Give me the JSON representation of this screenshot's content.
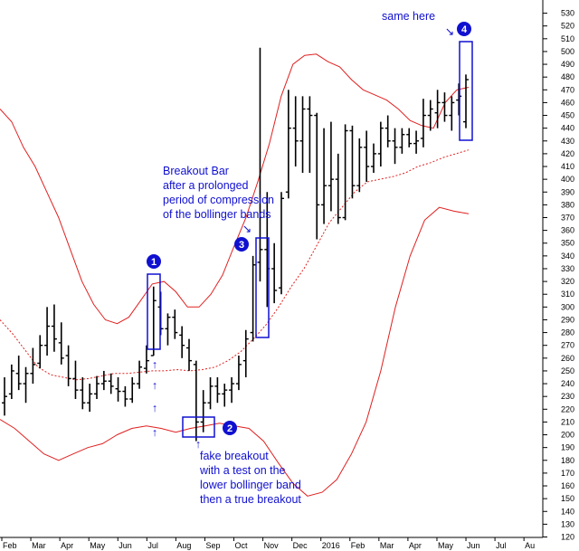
{
  "chart_data": {
    "type": "ohlc",
    "title": "",
    "xlabel": "",
    "ylabel": "",
    "ylim": [
      120,
      530
    ],
    "y_ticks": [
      120,
      130,
      140,
      150,
      160,
      170,
      180,
      190,
      200,
      210,
      220,
      230,
      240,
      250,
      260,
      270,
      280,
      290,
      300,
      310,
      320,
      330,
      340,
      350,
      360,
      370,
      380,
      390,
      400,
      410,
      420,
      430,
      440,
      450,
      460,
      470,
      480,
      490,
      500,
      510,
      520,
      530
    ],
    "x_labels": [
      "Feb",
      "Mar",
      "Apr",
      "May",
      "Jun",
      "Jul",
      "Aug",
      "Sep",
      "Oct",
      "Nov",
      "Dec",
      "2016",
      "Feb",
      "Mar",
      "Apr",
      "May",
      "Jun",
      "Jul",
      "Au"
    ],
    "grid": false,
    "colors": {
      "bars": "#000000",
      "bands": "#e02020",
      "annotation": "#1010d0"
    },
    "bars": [
      {
        "o": 225,
        "h": 245,
        "l": 215,
        "c": 230
      },
      {
        "o": 232,
        "h": 255,
        "l": 228,
        "c": 250
      },
      {
        "o": 248,
        "h": 262,
        "l": 235,
        "c": 240
      },
      {
        "o": 240,
        "h": 253,
        "l": 225,
        "c": 248
      },
      {
        "o": 248,
        "h": 268,
        "l": 240,
        "c": 255
      },
      {
        "o": 256,
        "h": 278,
        "l": 252,
        "c": 270
      },
      {
        "o": 270,
        "h": 300,
        "l": 262,
        "c": 285
      },
      {
        "o": 285,
        "h": 302,
        "l": 265,
        "c": 275
      },
      {
        "o": 272,
        "h": 288,
        "l": 255,
        "c": 260
      },
      {
        "o": 262,
        "h": 270,
        "l": 238,
        "c": 244
      },
      {
        "o": 244,
        "h": 258,
        "l": 228,
        "c": 235
      },
      {
        "o": 235,
        "h": 245,
        "l": 220,
        "c": 225
      },
      {
        "o": 225,
        "h": 240,
        "l": 218,
        "c": 232
      },
      {
        "o": 232,
        "h": 246,
        "l": 228,
        "c": 240
      },
      {
        "o": 240,
        "h": 250,
        "l": 235,
        "c": 242
      },
      {
        "o": 242,
        "h": 248,
        "l": 232,
        "c": 238
      },
      {
        "o": 236,
        "h": 245,
        "l": 226,
        "c": 234
      },
      {
        "o": 234,
        "h": 238,
        "l": 222,
        "c": 228
      },
      {
        "o": 228,
        "h": 245,
        "l": 225,
        "c": 240
      },
      {
        "o": 240,
        "h": 258,
        "l": 236,
        "c": 253
      },
      {
        "o": 252,
        "h": 270,
        "l": 248,
        "c": 258
      },
      {
        "o": 262,
        "h": 316,
        "l": 262,
        "c": 305
      },
      {
        "o": 300,
        "h": 312,
        "l": 278,
        "c": 283
      },
      {
        "o": 283,
        "h": 295,
        "l": 270,
        "c": 292
      },
      {
        "o": 292,
        "h": 298,
        "l": 275,
        "c": 280
      },
      {
        "o": 278,
        "h": 285,
        "l": 260,
        "c": 270
      },
      {
        "o": 268,
        "h": 275,
        "l": 250,
        "c": 258
      },
      {
        "o": 255,
        "h": 258,
        "l": 195,
        "c": 210
      },
      {
        "o": 210,
        "h": 235,
        "l": 202,
        "c": 225
      },
      {
        "o": 225,
        "h": 245,
        "l": 220,
        "c": 238
      },
      {
        "o": 238,
        "h": 245,
        "l": 225,
        "c": 232
      },
      {
        "o": 232,
        "h": 240,
        "l": 222,
        "c": 235
      },
      {
        "o": 235,
        "h": 245,
        "l": 225,
        "c": 240
      },
      {
        "o": 240,
        "h": 262,
        "l": 235,
        "c": 255
      },
      {
        "o": 258,
        "h": 282,
        "l": 245,
        "c": 275
      },
      {
        "o": 280,
        "h": 340,
        "l": 273,
        "c": 333
      },
      {
        "o": 335,
        "h": 503,
        "l": 320,
        "c": 345
      },
      {
        "o": 345,
        "h": 390,
        "l": 300,
        "c": 330
      },
      {
        "o": 330,
        "h": 350,
        "l": 303,
        "c": 313
      },
      {
        "o": 315,
        "h": 390,
        "l": 310,
        "c": 385
      },
      {
        "o": 390,
        "h": 470,
        "l": 385,
        "c": 440
      },
      {
        "o": 440,
        "h": 465,
        "l": 410,
        "c": 430
      },
      {
        "o": 430,
        "h": 465,
        "l": 405,
        "c": 455
      },
      {
        "o": 455,
        "h": 465,
        "l": 405,
        "c": 450
      },
      {
        "o": 450,
        "h": 452,
        "l": 353,
        "c": 380
      },
      {
        "o": 380,
        "h": 440,
        "l": 365,
        "c": 395
      },
      {
        "o": 395,
        "h": 445,
        "l": 375,
        "c": 400
      },
      {
        "o": 400,
        "h": 420,
        "l": 365,
        "c": 370
      },
      {
        "o": 370,
        "h": 443,
        "l": 368,
        "c": 438
      },
      {
        "o": 438,
        "h": 442,
        "l": 385,
        "c": 395
      },
      {
        "o": 395,
        "h": 432,
        "l": 390,
        "c": 425
      },
      {
        "o": 425,
        "h": 438,
        "l": 398,
        "c": 410
      },
      {
        "o": 410,
        "h": 428,
        "l": 405,
        "c": 420
      },
      {
        "o": 420,
        "h": 445,
        "l": 410,
        "c": 440
      },
      {
        "o": 440,
        "h": 450,
        "l": 425,
        "c": 430
      },
      {
        "o": 430,
        "h": 440,
        "l": 412,
        "c": 425
      },
      {
        "o": 425,
        "h": 440,
        "l": 420,
        "c": 435
      },
      {
        "o": 435,
        "h": 440,
        "l": 425,
        "c": 428
      },
      {
        "o": 428,
        "h": 438,
        "l": 420,
        "c": 430
      },
      {
        "o": 432,
        "h": 463,
        "l": 425,
        "c": 450
      },
      {
        "o": 450,
        "h": 462,
        "l": 438,
        "c": 455
      },
      {
        "o": 452,
        "h": 470,
        "l": 440,
        "c": 460
      },
      {
        "o": 460,
        "h": 468,
        "l": 445,
        "c": 450
      },
      {
        "o": 450,
        "h": 465,
        "l": 438,
        "c": 460
      },
      {
        "o": 462,
        "h": 475,
        "l": 450,
        "c": 465
      },
      {
        "o": 445,
        "h": 482,
        "l": 440,
        "c": 478
      }
    ],
    "upper_band": [
      455,
      445,
      425,
      410,
      390,
      370,
      345,
      320,
      302,
      290,
      287,
      292,
      305,
      318,
      320,
      312,
      300,
      300,
      310,
      325,
      348,
      370,
      398,
      428,
      465,
      490,
      497,
      498,
      492,
      488,
      478,
      470,
      466,
      462,
      455,
      446,
      442,
      440,
      460,
      470,
      472
    ],
    "middle_band": [
      290,
      279,
      266,
      253,
      247,
      245,
      243,
      244,
      246,
      248,
      248,
      249,
      250,
      250,
      251,
      250,
      251,
      253,
      258,
      265,
      275,
      286,
      300,
      316,
      330,
      348,
      366,
      378,
      390,
      398,
      400,
      402,
      405,
      410,
      413,
      417,
      420,
      423
    ],
    "lower_band": [
      212,
      205,
      195,
      185,
      180,
      185,
      190,
      193,
      200,
      205,
      207,
      205,
      202,
      205,
      207,
      209,
      207,
      205,
      195,
      178,
      162,
      152,
      155,
      165,
      185,
      210,
      250,
      300,
      340,
      368,
      378,
      375,
      373
    ]
  },
  "annotations": {
    "breakout_bar": [
      "Breakout Bar",
      "after a prolonged",
      "period of compression",
      "of the bollinger bands"
    ],
    "fake_breakout": [
      "fake breakout",
      "with a test on the",
      "lower bollinger band",
      "then a true breakout"
    ],
    "same_here": "same here",
    "badges": [
      "1",
      "2",
      "3",
      "4"
    ],
    "arrows": {
      "down": "↘",
      "up": "↑"
    }
  }
}
